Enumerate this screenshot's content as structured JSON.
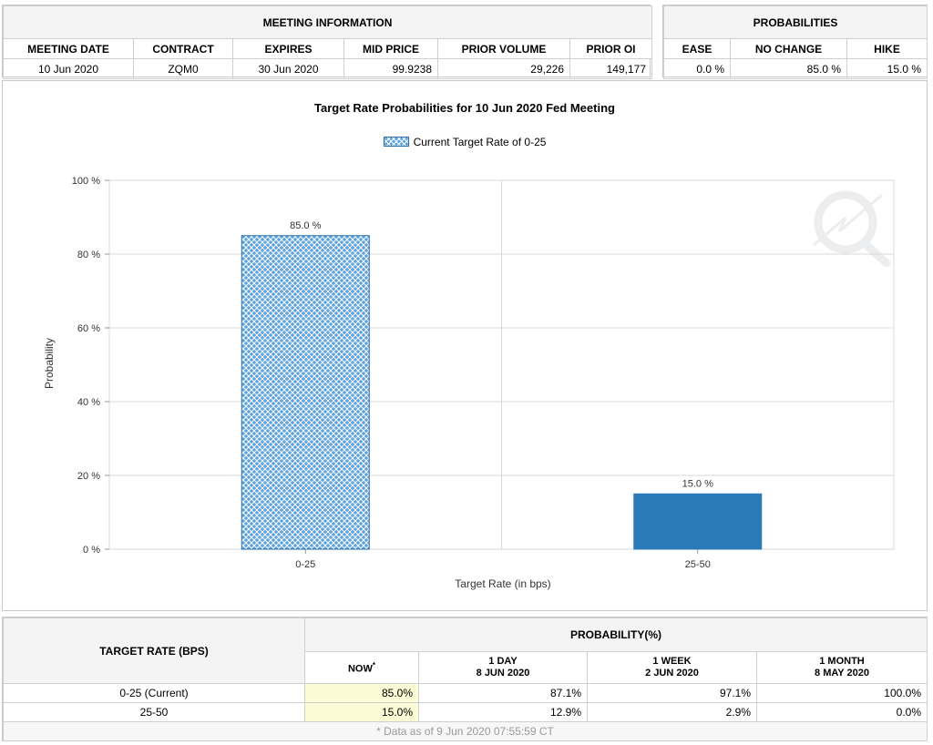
{
  "meeting_info": {
    "heading": "MEETING INFORMATION",
    "columns": [
      "MEETING DATE",
      "CONTRACT",
      "EXPIRES",
      "MID PRICE",
      "PRIOR VOLUME",
      "PRIOR OI"
    ],
    "row": [
      "10 Jun 2020",
      "ZQM0",
      "30 Jun 2020",
      "99.9238",
      "29,226",
      "149,177"
    ]
  },
  "probabilities": {
    "heading": "PROBABILITIES",
    "columns": [
      "EASE",
      "NO CHANGE",
      "HIKE"
    ],
    "row": [
      "0.0 %",
      "85.0 %",
      "15.0 %"
    ]
  },
  "chart_data": {
    "type": "bar",
    "title": "Target Rate Probabilities for 10 Jun 2020 Fed Meeting",
    "legend": "Current Target Rate of 0-25",
    "legend_position": "top-center",
    "xlabel": "Target Rate (in bps)",
    "ylabel": "Probability",
    "categories": [
      "0-25",
      "25-50"
    ],
    "values": [
      85.0,
      15.0
    ],
    "value_labels": [
      "85.0 %",
      "15.0 %"
    ],
    "ylim": [
      0,
      100
    ],
    "yticks": [
      0,
      20,
      40,
      60,
      80,
      100
    ],
    "ytick_labels": [
      "0 %",
      "20 %",
      "40 %",
      "60 %",
      "80 %",
      "100 %"
    ],
    "grid": true,
    "colors": {
      "current": "#5aa2e0",
      "other": "#2a7ab8"
    }
  },
  "bottom_table": {
    "target_header": "TARGET RATE (BPS)",
    "prob_header": "PROBABILITY(%)",
    "sub_headers": [
      {
        "line1": "NOW",
        "sup": "*",
        "line2": ""
      },
      {
        "line1": "1 DAY",
        "line2": "8 JUN 2020"
      },
      {
        "line1": "1 WEEK",
        "line2": "2 JUN 2020"
      },
      {
        "line1": "1 MONTH",
        "line2": "8 MAY 2020"
      }
    ],
    "rows": [
      {
        "rate": "0-25 (Current)",
        "now": "85.0%",
        "day": "87.1%",
        "week": "97.1%",
        "month": "100.0%"
      },
      {
        "rate": "25-50",
        "now": "15.0%",
        "day": "12.9%",
        "week": "2.9%",
        "month": "0.0%"
      }
    ],
    "footnote": "* Data as of 9 Jun 2020 07:55:59 CT"
  }
}
